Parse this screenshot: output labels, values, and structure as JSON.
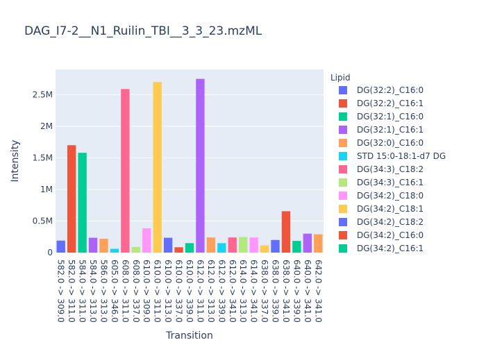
{
  "chart_data": {
    "type": "bar",
    "title": "DAG_I7-2__N1_Ruilin_TBI__3_3_23.mzML",
    "xlabel": "Transition",
    "ylabel": "Intensity",
    "ylim": [
      0,
      2900000
    ],
    "y_ticks": [
      {
        "value": 0,
        "label": "0"
      },
      {
        "value": 500000,
        "label": "0.5M"
      },
      {
        "value": 1000000,
        "label": "1M"
      },
      {
        "value": 1500000,
        "label": "1.5M"
      },
      {
        "value": 2000000,
        "label": "2M"
      },
      {
        "value": 2500000,
        "label": "2.5M"
      }
    ],
    "legend_title": "Lipid",
    "legend_position": "right",
    "grid": true,
    "series": [
      {
        "name": "DG(32:2)_C16:0",
        "color": "#636efa"
      },
      {
        "name": "DG(32:2)_C16:1",
        "color": "#EF553B"
      },
      {
        "name": "DG(32:1)_C16:0",
        "color": "#00cc96"
      },
      {
        "name": "DG(32:1)_C16:1",
        "color": "#ab63fa"
      },
      {
        "name": "DG(32:0)_C16:0",
        "color": "#FFA15A"
      },
      {
        "name": "STD 15:0-18:1-d7 DG",
        "color": "#19d3f3"
      },
      {
        "name": "DG(34:3)_C18:2",
        "color": "#FF6692"
      },
      {
        "name": "DG(34:3)_C16:1",
        "color": "#B6E880"
      },
      {
        "name": "DG(34:2)_C18:0",
        "color": "#FF97FF"
      },
      {
        "name": "DG(34:2)_C18:1",
        "color": "#FECB52"
      },
      {
        "name": "DG(34:2)_C18:2",
        "color": "#636efa"
      },
      {
        "name": "DG(34:2)_C16:0",
        "color": "#EF553B"
      },
      {
        "name": "DG(34:2)_C16:1",
        "color": "#00cc96"
      }
    ],
    "bars": [
      {
        "category": "582.0 -> 309.0",
        "value": 190000,
        "color": "#636efa"
      },
      {
        "category": "582.0 -> 311.0",
        "value": 1700000,
        "color": "#EF553B"
      },
      {
        "category": "584.0 -> 311.0",
        "value": 1580000,
        "color": "#00cc96"
      },
      {
        "category": "584.0 -> 313.0",
        "value": 235000,
        "color": "#ab63fa"
      },
      {
        "category": "586.0 -> 313.0",
        "value": 220000,
        "color": "#FFA15A"
      },
      {
        "category": "605.0 -> 346.0",
        "value": 60000,
        "color": "#19d3f3"
      },
      {
        "category": "608.0 -> 311.0",
        "value": 2590000,
        "color": "#FF6692"
      },
      {
        "category": "608.0 -> 337.0",
        "value": 90000,
        "color": "#B6E880"
      },
      {
        "category": "610.0 -> 309.0",
        "value": 385000,
        "color": "#FF97FF"
      },
      {
        "category": "610.0 -> 311.0",
        "value": 2700000,
        "color": "#FECB52"
      },
      {
        "category": "610.0 -> 313.0",
        "value": 235000,
        "color": "#636efa"
      },
      {
        "category": "610.0 -> 337.0",
        "value": 85000,
        "color": "#EF553B"
      },
      {
        "category": "610.0 -> 339.0",
        "value": 150000,
        "color": "#00cc96"
      },
      {
        "category": "612.0 -> 311.0",
        "value": 2750000,
        "color": "#ab63fa"
      },
      {
        "category": "612.0 -> 313.0",
        "value": 240000,
        "color": "#FFA15A"
      },
      {
        "category": "612.0 -> 339.0",
        "value": 150000,
        "color": "#19d3f3"
      },
      {
        "category": "612.0 -> 341.0",
        "value": 240000,
        "color": "#FF6692"
      },
      {
        "category": "614.0 -> 313.0",
        "value": 245000,
        "color": "#B6E880"
      },
      {
        "category": "614.0 -> 341.0",
        "value": 240000,
        "color": "#FF97FF"
      },
      {
        "category": "638.0 -> 337.0",
        "value": 115000,
        "color": "#FECB52"
      },
      {
        "category": "638.0 -> 339.0",
        "value": 200000,
        "color": "#636efa"
      },
      {
        "category": "638.0 -> 341.0",
        "value": 655000,
        "color": "#EF553B"
      },
      {
        "category": "640.0 -> 339.0",
        "value": 185000,
        "color": "#00cc96"
      },
      {
        "category": "640.0 -> 341.0",
        "value": 300000,
        "color": "#ab63fa"
      },
      {
        "category": "642.0 -> 341.0",
        "value": 290000,
        "color": "#FFA15A"
      }
    ]
  }
}
